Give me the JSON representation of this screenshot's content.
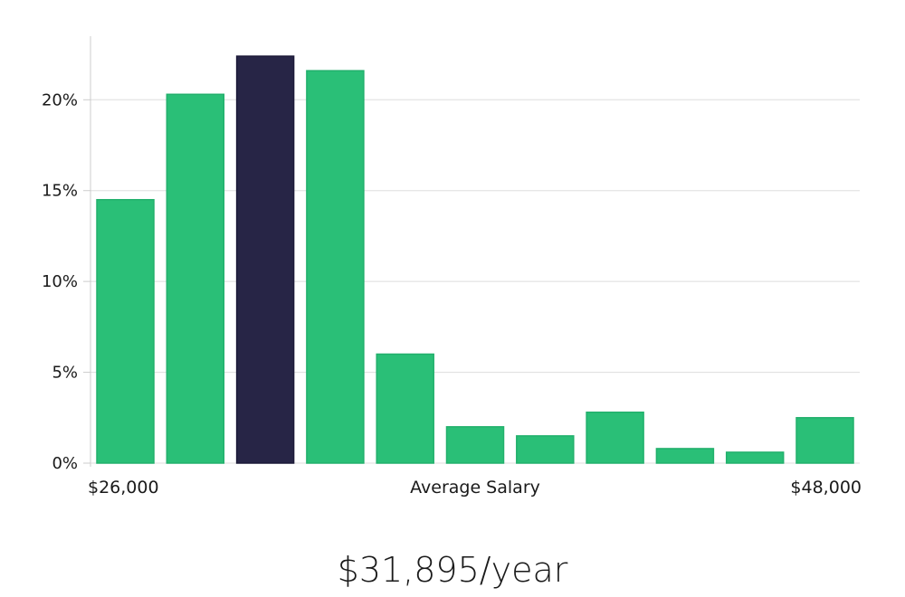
{
  "chart_data": {
    "type": "bar",
    "categories": [
      "1",
      "2",
      "3",
      "4",
      "5",
      "6",
      "7",
      "8",
      "9",
      "10",
      "11"
    ],
    "values": [
      14.5,
      20.3,
      22.4,
      21.6,
      6.0,
      2.0,
      1.5,
      2.8,
      0.8,
      0.6,
      2.5
    ],
    "highlight_index": 2,
    "ylim": [
      0,
      23.5
    ],
    "yticks": [
      0,
      5,
      10,
      15,
      20
    ],
    "ytick_labels": [
      "0%",
      "5%",
      "10%",
      "15%",
      "20%"
    ],
    "xlabel": "Average Salary",
    "x_min_label": "$26,000",
    "x_max_label": "$48,000",
    "grid": true,
    "colors": {
      "bar": "#2abf77",
      "highlight": "#272546",
      "grid": "#dddddd",
      "axis": "#cccccc"
    }
  },
  "summary": {
    "salary": "$31,895/year"
  }
}
